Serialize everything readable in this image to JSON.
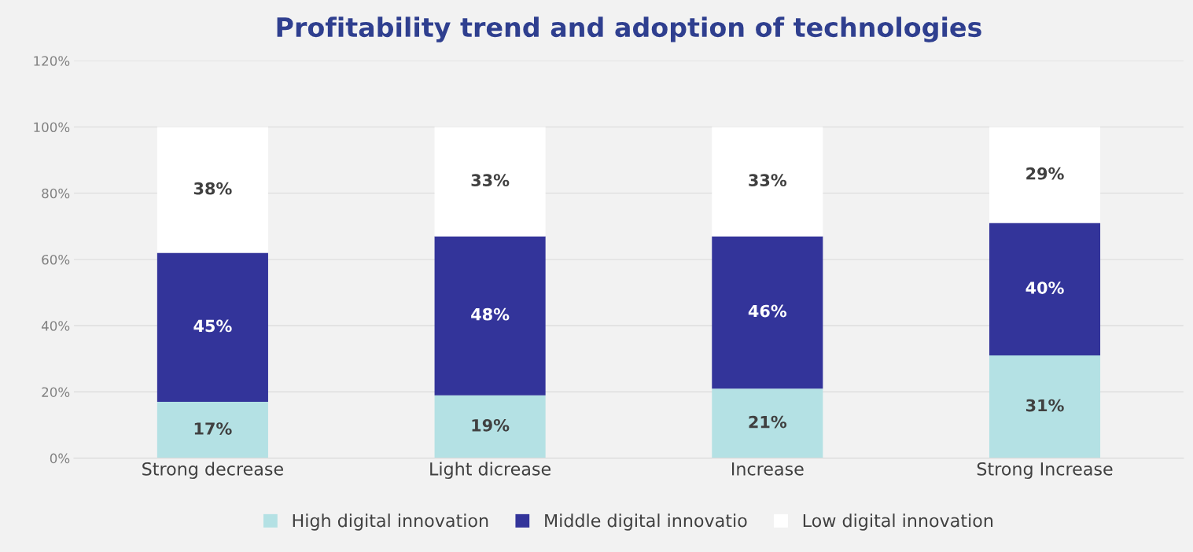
{
  "chart_data": {
    "type": "bar",
    "title": "Profitability trend and adoption of technologies",
    "stacked": true,
    "categories": [
      "Strong decrease",
      "Light dicrease",
      "Increase",
      "Strong Increase"
    ],
    "series": [
      {
        "name": "High digital innovation",
        "color": "#b4e1e4",
        "values": [
          17,
          19,
          21,
          31
        ],
        "value_labels": [
          "17%",
          "19%",
          "21%",
          "31%"
        ]
      },
      {
        "name": "Middle digital innovatio",
        "color": "#33349a",
        "values": [
          45,
          48,
          46,
          40
        ],
        "value_labels": [
          "45%",
          "48%",
          "46%",
          "40%"
        ]
      },
      {
        "name": "Low digital innovation",
        "color": "#ffffff",
        "values": [
          38,
          33,
          33,
          29
        ],
        "value_labels": [
          "38%",
          "33%",
          "33%",
          "29%"
        ]
      }
    ],
    "ylim": [
      0,
      120
    ],
    "yticks": [
      {
        "value": 0,
        "label": "0%"
      },
      {
        "value": 20,
        "label": "20%"
      },
      {
        "value": 40,
        "label": "40%"
      },
      {
        "value": 60,
        "label": "60%"
      },
      {
        "value": 80,
        "label": "80%"
      },
      {
        "value": 100,
        "label": "100%"
      },
      {
        "value": 120,
        "label": "120%"
      }
    ],
    "grid": "y",
    "legend": "bottom"
  }
}
